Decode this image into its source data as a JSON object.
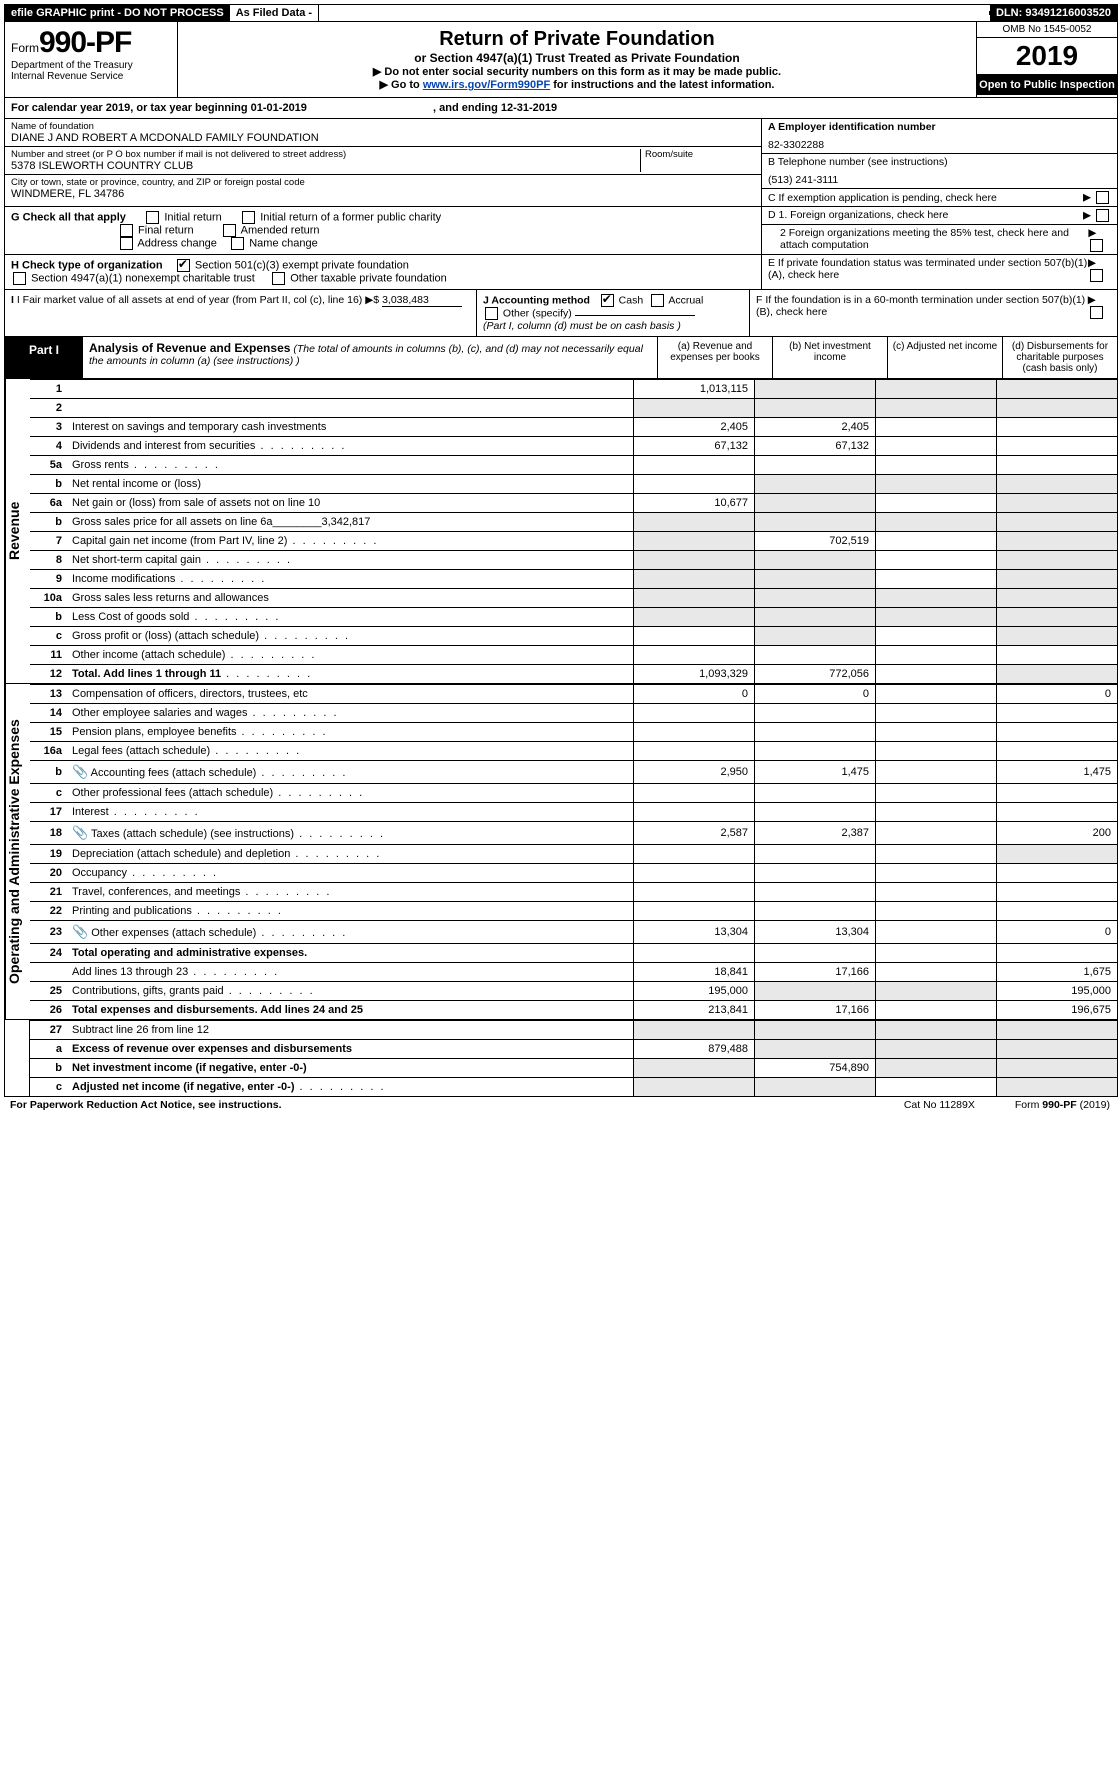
{
  "topbar": {
    "efile": "efile GRAPHIC print - DO NOT PROCESS",
    "asfiled": "As Filed Data -",
    "dln": "DLN: 93491216003520"
  },
  "header": {
    "form_prefix": "Form",
    "form_num": "990-PF",
    "dept": "Department of the Treasury",
    "irs": "Internal Revenue Service",
    "title": "Return of Private Foundation",
    "subtitle": "or Section 4947(a)(1) Trust Treated as Private Foundation",
    "instr1": "▶ Do not enter social security numbers on this form as it may be made public.",
    "instr2_pre": "▶ Go to ",
    "instr2_link": "www.irs.gov/Form990PF",
    "instr2_post": " for instructions and the latest information.",
    "omb": "OMB No 1545-0052",
    "year": "2019",
    "open": "Open to Public Inspection"
  },
  "calendar": {
    "pre": "For calendar year 2019, or tax year beginning 01-01-2019",
    "post": ", and ending 12-31-2019"
  },
  "ident": {
    "name_lbl": "Name of foundation",
    "name_val": "DIANE J AND ROBERT A MCDONALD FAMILY FOUNDATION",
    "addr_lbl": "Number and street (or P O  box number if mail is not delivered to street address)",
    "addr_val": "5378 ISLEWORTH COUNTRY CLUB",
    "room_lbl": "Room/suite",
    "city_lbl": "City or town, state or province, country, and ZIP or foreign postal code",
    "city_val": "WINDMERE, FL 34786",
    "a_lbl": "A Employer identification number",
    "a_val": "82-3302288",
    "b_lbl": "B Telephone number (see instructions)",
    "b_val": "(513) 241-3111",
    "c_lbl": "C If exemption application is pending, check here"
  },
  "g": {
    "lbl": "G Check all that apply",
    "initial": "Initial return",
    "initial_former": "Initial return of a former public charity",
    "final": "Final return",
    "amended": "Amended return",
    "addr_change": "Address change",
    "name_change": "Name change"
  },
  "h": {
    "lbl": "H Check type of organization",
    "s501": "Section 501(c)(3) exempt private foundation",
    "s4947": "Section 4947(a)(1) nonexempt charitable trust",
    "other_tax": "Other taxable private foundation"
  },
  "d": {
    "d1": "D 1. Foreign organizations, check here",
    "d2": "2 Foreign organizations meeting the 85% test, check here and attach computation",
    "e": "E  If private foundation status was terminated under section 507(b)(1)(A), check here"
  },
  "i": {
    "lbl": "I Fair market value of all assets at end of year (from Part II, col  (c), line 16)",
    "arrow": "▶$",
    "val": "3,038,483"
  },
  "j": {
    "lbl": "J Accounting method",
    "cash": "Cash",
    "accrual": "Accrual",
    "other": "Other (specify)",
    "note": "(Part I, column (d) must be on cash basis )"
  },
  "f": {
    "lbl": "F  If the foundation is in a 60-month termination under section 507(b)(1)(B), check here"
  },
  "part1": {
    "label": "Part I",
    "title": "Analysis of Revenue and Expenses",
    "note": "(The total of amounts in columns (b), (c), and (d) may not necessarily equal the amounts in column (a) (see instructions) )",
    "col_a": "(a)   Revenue and expenses per books",
    "col_b": "(b)  Net investment income",
    "col_c": "(c)  Adjusted net income",
    "col_d": "(d)  Disbursements for charitable purposes (cash basis only)"
  },
  "revenue_label": "Revenue",
  "expenses_label": "Operating and Administrative Expenses",
  "rows_rev": [
    {
      "n": "1",
      "d": "",
      "a": "1,013,115",
      "b": "",
      "c": "",
      "shade_b": true,
      "shade_c": true,
      "shade_d": true
    },
    {
      "n": "2",
      "d": "",
      "a": "",
      "b": "",
      "c": "",
      "dotsOnly": true,
      "shade": true,
      "shade_b": true,
      "shade_c": true,
      "shade_d": true
    },
    {
      "n": "3",
      "d": "Interest on savings and temporary cash investments",
      "a": "2,405",
      "b": "2,405"
    },
    {
      "n": "4",
      "d": "Dividends and interest from securities",
      "a": "67,132",
      "b": "67,132",
      "dots": true
    },
    {
      "n": "5a",
      "d": "Gross rents",
      "dots": true
    },
    {
      "n": "b",
      "d": "Net rental income or (loss)",
      "shade_b": true,
      "shade_c": true,
      "shade_d": true,
      "inline": true
    },
    {
      "n": "6a",
      "d": "Net gain or (loss) from sale of assets not on line 10",
      "a": "10,677",
      "shade_b": true,
      "shade_d": true
    },
    {
      "n": "b",
      "d": "Gross sales price for all assets on line 6a________3,342,817",
      "shade": true,
      "shade_b": true,
      "shade_c": true,
      "shade_d": true
    },
    {
      "n": "7",
      "d": "Capital gain net income (from Part IV, line 2)",
      "b": "702,519",
      "dots": true,
      "shade_a": true,
      "shade_d": true
    },
    {
      "n": "8",
      "d": "Net short-term capital gain",
      "dots": true,
      "shade_a": true,
      "shade_b": true,
      "shade_d": true
    },
    {
      "n": "9",
      "d": "Income modifications",
      "dots": true,
      "shade_a": true,
      "shade_b": true,
      "shade_d": true
    },
    {
      "n": "10a",
      "d": "Gross sales less returns and allowances",
      "inline": true,
      "shade": true,
      "shade_b": true,
      "shade_c": true,
      "shade_d": true
    },
    {
      "n": "b",
      "d": "Less  Cost of goods sold",
      "inline": true,
      "dots": true,
      "shade": true,
      "shade_b": true,
      "shade_c": true,
      "shade_d": true
    },
    {
      "n": "c",
      "d": "Gross profit or (loss) (attach schedule)",
      "dots": true,
      "shade_b": true,
      "shade_d": true
    },
    {
      "n": "11",
      "d": "Other income (attach schedule)",
      "dots": true
    },
    {
      "n": "12",
      "d": "Total. Add lines 1 through 11",
      "a": "1,093,329",
      "b": "772,056",
      "bold": true,
      "dots": true,
      "shade_d": true
    }
  ],
  "rows_exp": [
    {
      "n": "13",
      "d": "Compensation of officers, directors, trustees, etc",
      "a": "0",
      "b": "0",
      "dd": "0"
    },
    {
      "n": "14",
      "d": "Other employee salaries and wages",
      "dots": true
    },
    {
      "n": "15",
      "d": "Pension plans, employee benefits",
      "dots": true
    },
    {
      "n": "16a",
      "d": "Legal fees (attach schedule)",
      "dots": true
    },
    {
      "n": "b",
      "d": "Accounting fees (attach schedule)",
      "a": "2,950",
      "b": "1,475",
      "dd": "1,475",
      "dots": true,
      "icon": true
    },
    {
      "n": "c",
      "d": "Other professional fees (attach schedule)",
      "dots": true
    },
    {
      "n": "17",
      "d": "Interest",
      "dots": true
    },
    {
      "n": "18",
      "d": "Taxes (attach schedule) (see instructions)",
      "a": "2,587",
      "b": "2,387",
      "dd": "200",
      "dots": true,
      "icon": true
    },
    {
      "n": "19",
      "d": "Depreciation (attach schedule) and depletion",
      "dots": true,
      "shade_d": true
    },
    {
      "n": "20",
      "d": "Occupancy",
      "dots": true
    },
    {
      "n": "21",
      "d": "Travel, conferences, and meetings",
      "dots": true
    },
    {
      "n": "22",
      "d": "Printing and publications",
      "dots": true
    },
    {
      "n": "23",
      "d": "Other expenses (attach schedule)",
      "a": "13,304",
      "b": "13,304",
      "dd": "0",
      "dots": true,
      "icon": true
    },
    {
      "n": "24",
      "d": "Total operating and administrative expenses.",
      "bold": true,
      "noborder": true
    },
    {
      "n": "",
      "d": "Add lines 13 through 23",
      "a": "18,841",
      "b": "17,166",
      "dd": "1,675",
      "dots": true
    },
    {
      "n": "25",
      "d": "Contributions, gifts, grants paid",
      "a": "195,000",
      "dd": "195,000",
      "dots": true,
      "shade_b": true,
      "shade_c": true
    },
    {
      "n": "26",
      "d": "Total expenses and disbursements. Add lines 24 and 25",
      "a": "213,841",
      "b": "17,166",
      "dd": "196,675",
      "bold": true
    }
  ],
  "rows_bot": [
    {
      "n": "27",
      "d": "Subtract line 26 from line 12",
      "shade": true,
      "shade_b": true,
      "shade_c": true,
      "shade_d": true
    },
    {
      "n": "a",
      "d": "Excess of revenue over expenses and disbursements",
      "a": "879,488",
      "bold": true,
      "shade_b": true,
      "shade_c": true,
      "shade_d": true
    },
    {
      "n": "b",
      "d": "Net investment income (if negative, enter -0-)",
      "b": "754,890",
      "bold": true,
      "shade_a": true,
      "shade_c": true,
      "shade_d": true
    },
    {
      "n": "c",
      "d": "Adjusted net income (if negative, enter -0-)",
      "bold": true,
      "dots": true,
      "shade_a": true,
      "shade_b": true,
      "shade_d": true
    }
  ],
  "footer": {
    "left": "For Paperwork Reduction Act Notice, see instructions.",
    "mid": "Cat No 11289X",
    "right": "Form 990-PF (2019)"
  }
}
